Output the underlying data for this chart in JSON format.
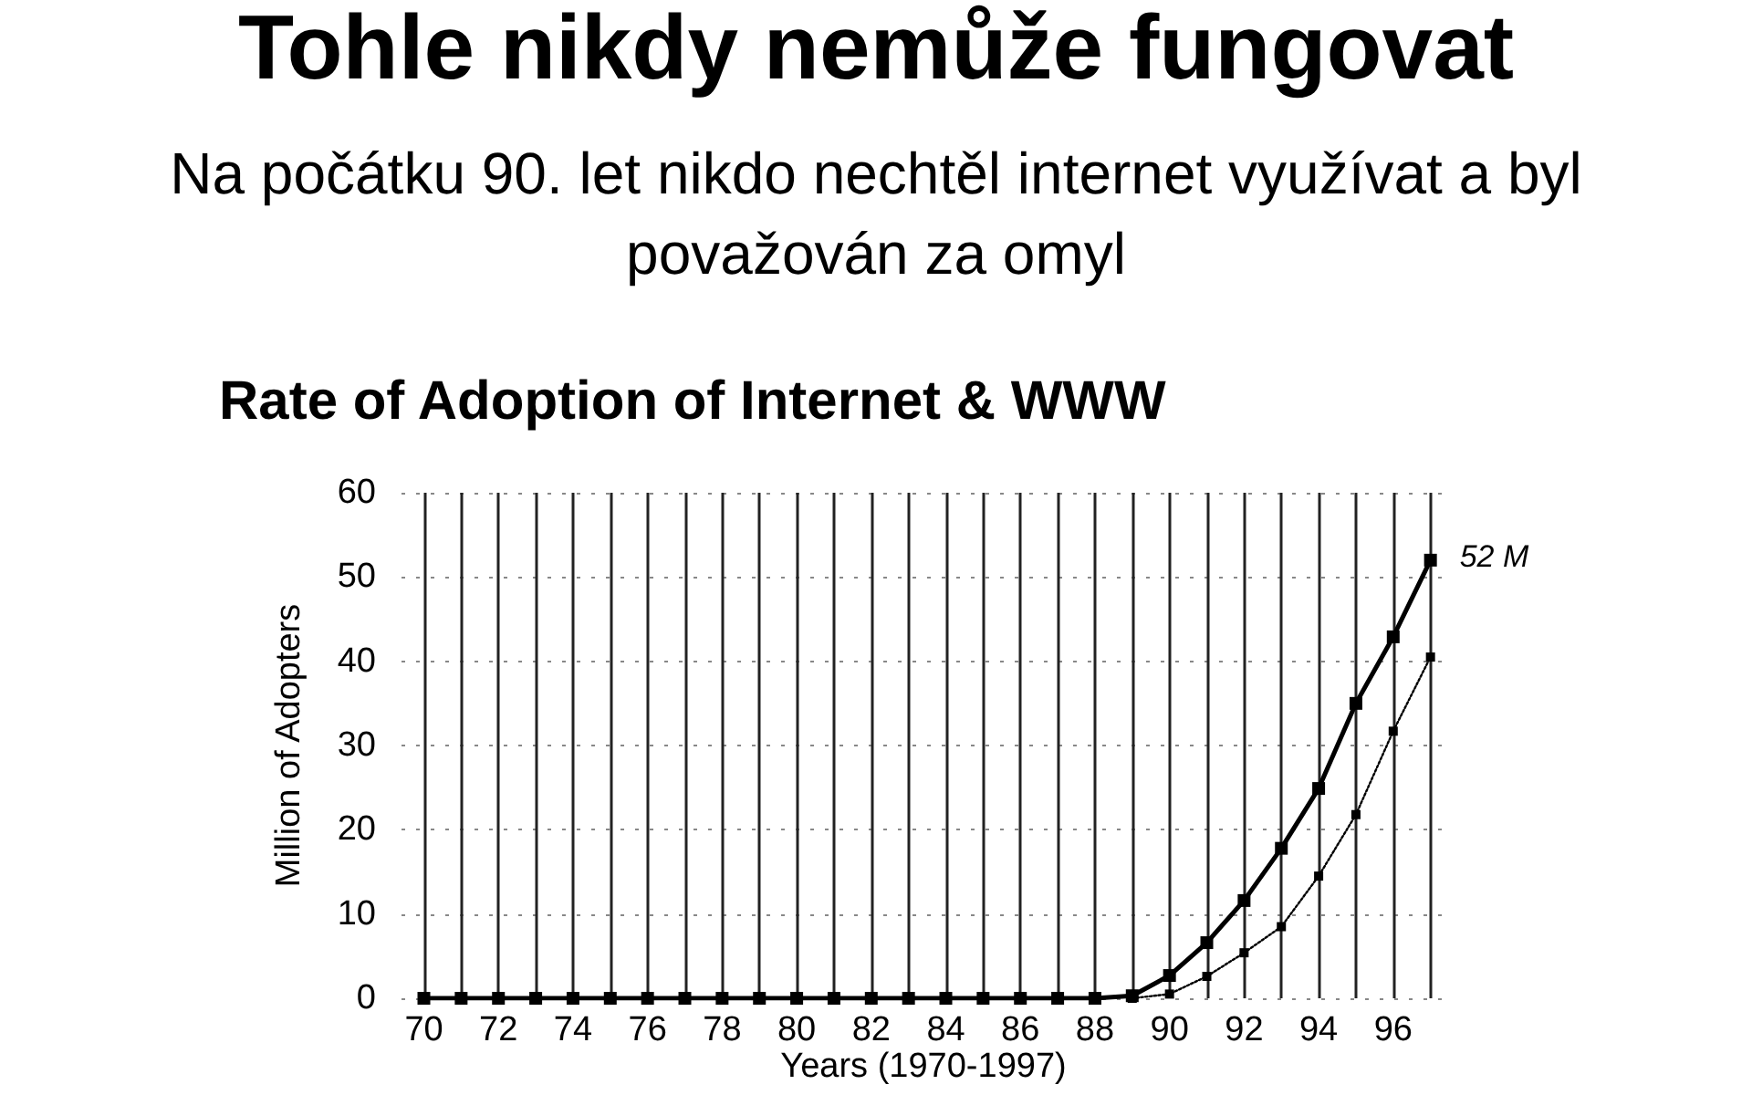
{
  "chart_data": {
    "type": "line",
    "title": "Tohle nikdy nemůže fungovat",
    "subtitle": "Na počátku 90. let nikdo nechtěl internet využívat a byl\npovažován za omyl",
    "annotations": [
      "Rate of Adoption of Internet & WWW",
      {
        "text": "52 M",
        "x": 97,
        "y": 52
      }
    ],
    "xlabel": "Years (1970-1997)",
    "ylabel": "Million of Adopters",
    "series": [
      {
        "color": "#000000",
        "line_style": "solid",
        "x": [
          70,
          71,
          72,
          73,
          74,
          75,
          76,
          77,
          78,
          79,
          80,
          81,
          82,
          83,
          84,
          85,
          86,
          87,
          88,
          89,
          90,
          91,
          92,
          93,
          94,
          95,
          96,
          97
        ],
        "values": [
          0,
          0,
          0,
          0,
          0,
          0,
          0,
          0,
          0,
          0,
          0,
          0,
          0,
          0,
          0,
          0,
          0,
          0,
          0,
          0.3,
          2.7,
          6.6,
          11.6,
          17.8,
          24.9,
          35,
          42.9,
          52
        ]
      },
      {
        "color": "#000000",
        "line_style": "dotted",
        "x": [
          89,
          90,
          91,
          92,
          93,
          94,
          95,
          96,
          97
        ],
        "values": [
          0,
          0.5,
          2.6,
          5.4,
          8.5,
          14.5,
          21.8,
          31.7,
          40.5
        ]
      }
    ],
    "marker": "square",
    "grid": true,
    "xlim": [
      69.4,
      97.4
    ],
    "xticks": [
      70,
      {
        "value": 71,
        "label": null
      },
      72,
      {
        "value": 73,
        "label": null
      },
      74,
      {
        "value": 75,
        "label": null
      },
      76,
      {
        "value": 77,
        "label": null
      },
      78,
      {
        "value": 79,
        "label": null
      },
      80,
      {
        "value": 81,
        "label": null
      },
      82,
      {
        "value": 83,
        "label": null
      },
      84,
      {
        "value": 85,
        "label": null
      },
      86,
      {
        "value": 87,
        "label": null
      },
      88,
      {
        "value": 89,
        "label": null
      },
      90,
      {
        "value": 91,
        "label": null
      },
      92,
      {
        "value": 93,
        "label": null
      },
      94,
      {
        "value": 95,
        "label": null
      },
      96,
      {
        "value": 97,
        "label": null
      }
    ],
    "ylim": [
      0,
      60
    ],
    "yticks": [
      0,
      10,
      20,
      30,
      40,
      50,
      60
    ]
  }
}
